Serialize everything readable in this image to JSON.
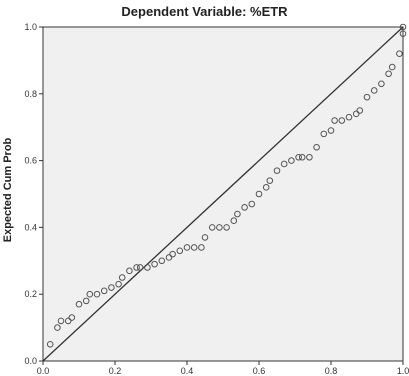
{
  "chart_data": {
    "type": "scatter",
    "title": "Dependent Variable: %ETR",
    "xlabel": "",
    "ylabel": "Expected Cum Prob",
    "xlim": [
      0.0,
      1.0
    ],
    "ylim": [
      0.0,
      1.0
    ],
    "x_ticks": [
      "0.0",
      "0.2",
      "0.4",
      "0.6",
      "0.8",
      "1.0"
    ],
    "y_ticks": [
      "0.0",
      "0.2",
      "0.4",
      "0.6",
      "0.8",
      "1.0"
    ],
    "reference_line": {
      "from": [
        0.0,
        0.0
      ],
      "to": [
        1.0,
        1.0
      ]
    },
    "grid": false,
    "legend": "none",
    "colors": {
      "plot_background": "#f0f0f0",
      "marker": "#555555",
      "line": "#333333"
    },
    "points": [
      [
        0.02,
        0.05
      ],
      [
        0.04,
        0.1
      ],
      [
        0.05,
        0.12
      ],
      [
        0.07,
        0.12
      ],
      [
        0.08,
        0.13
      ],
      [
        0.1,
        0.17
      ],
      [
        0.12,
        0.18
      ],
      [
        0.13,
        0.2
      ],
      [
        0.15,
        0.2
      ],
      [
        0.17,
        0.21
      ],
      [
        0.19,
        0.22
      ],
      [
        0.21,
        0.23
      ],
      [
        0.22,
        0.25
      ],
      [
        0.24,
        0.27
      ],
      [
        0.26,
        0.28
      ],
      [
        0.27,
        0.28
      ],
      [
        0.29,
        0.28
      ],
      [
        0.31,
        0.29
      ],
      [
        0.33,
        0.3
      ],
      [
        0.35,
        0.31
      ],
      [
        0.36,
        0.32
      ],
      [
        0.38,
        0.33
      ],
      [
        0.4,
        0.34
      ],
      [
        0.42,
        0.34
      ],
      [
        0.44,
        0.34
      ],
      [
        0.45,
        0.37
      ],
      [
        0.47,
        0.4
      ],
      [
        0.49,
        0.4
      ],
      [
        0.51,
        0.4
      ],
      [
        0.53,
        0.42
      ],
      [
        0.54,
        0.44
      ],
      [
        0.56,
        0.46
      ],
      [
        0.58,
        0.47
      ],
      [
        0.6,
        0.5
      ],
      [
        0.62,
        0.52
      ],
      [
        0.63,
        0.54
      ],
      [
        0.65,
        0.57
      ],
      [
        0.67,
        0.59
      ],
      [
        0.69,
        0.6
      ],
      [
        0.71,
        0.61
      ],
      [
        0.72,
        0.61
      ],
      [
        0.74,
        0.61
      ],
      [
        0.76,
        0.64
      ],
      [
        0.78,
        0.68
      ],
      [
        0.8,
        0.69
      ],
      [
        0.81,
        0.72
      ],
      [
        0.83,
        0.72
      ],
      [
        0.85,
        0.73
      ],
      [
        0.87,
        0.74
      ],
      [
        0.88,
        0.75
      ],
      [
        0.9,
        0.79
      ],
      [
        0.92,
        0.81
      ],
      [
        0.94,
        0.83
      ],
      [
        0.96,
        0.86
      ],
      [
        0.97,
        0.88
      ],
      [
        0.99,
        0.92
      ],
      [
        1.0,
        0.98
      ],
      [
        1.0,
        1.0
      ]
    ]
  }
}
